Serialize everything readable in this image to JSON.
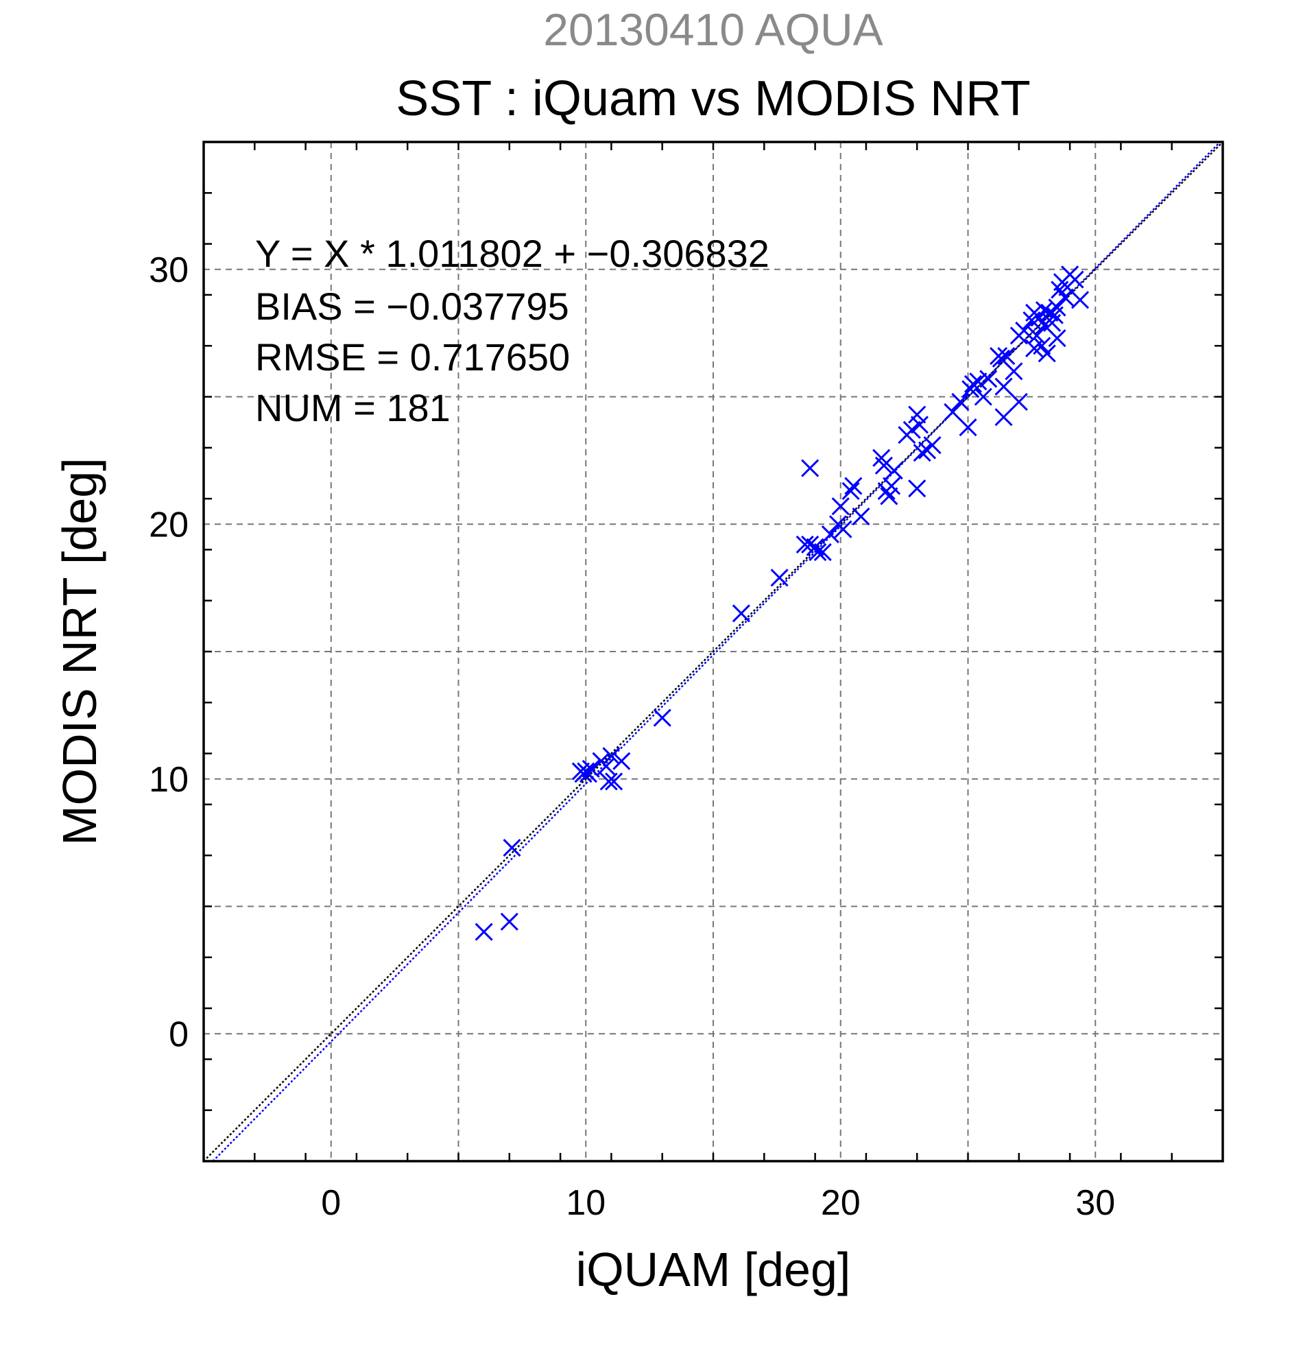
{
  "chart_data": {
    "type": "scatter",
    "suptitle": "20130410 AQUA",
    "title": "SST : iQuam vs MODIS NRT",
    "xlabel": "iQUAM [deg]",
    "ylabel": "MODIS NRT [deg]",
    "xlim": [
      -5,
      35
    ],
    "ylim": [
      -5,
      35
    ],
    "xticks": [
      0,
      10,
      20,
      30
    ],
    "yticks": [
      0,
      10,
      20,
      30
    ],
    "xtick_labels": [
      "0",
      "10",
      "20",
      "30"
    ],
    "ytick_labels": [
      "0",
      "10",
      "20",
      "30"
    ],
    "grid": true,
    "annotations": [
      "Y = X * 1.011802 + −0.306832",
      "BIAS = −0.037795",
      "RMSE = 0.717650",
      "NUM = 181"
    ],
    "regression": {
      "slope": 1.011802,
      "intercept": -0.306832,
      "color": "#0000ff"
    },
    "identity_line": {
      "slope": 1,
      "intercept": 0,
      "color": "#000000"
    },
    "series": [
      {
        "marker": "x",
        "color": "#0000ff",
        "points": [
          [
            6.0,
            4.0
          ],
          [
            7.0,
            4.4
          ],
          [
            7.1,
            7.3
          ],
          [
            9.8,
            10.3
          ],
          [
            9.9,
            10.2
          ],
          [
            10.0,
            10.3
          ],
          [
            10.1,
            10.2
          ],
          [
            10.2,
            10.4
          ],
          [
            10.6,
            10.7
          ],
          [
            10.8,
            10.5
          ],
          [
            11.0,
            10.9
          ],
          [
            10.9,
            9.9
          ],
          [
            11.1,
            9.9
          ],
          [
            11.4,
            10.7
          ],
          [
            13.0,
            12.4
          ],
          [
            16.1,
            16.5
          ],
          [
            17.6,
            17.9
          ],
          [
            18.6,
            19.2
          ],
          [
            18.8,
            19.2
          ],
          [
            19.0,
            19.1
          ],
          [
            19.1,
            18.9
          ],
          [
            19.3,
            18.9
          ],
          [
            18.8,
            22.2
          ],
          [
            19.6,
            19.6
          ],
          [
            19.9,
            20.0
          ],
          [
            20.0,
            20.7
          ],
          [
            20.1,
            19.8
          ],
          [
            20.4,
            21.3
          ],
          [
            20.5,
            21.5
          ],
          [
            20.8,
            20.3
          ],
          [
            21.6,
            22.6
          ],
          [
            21.7,
            22.3
          ],
          [
            21.8,
            21.3
          ],
          [
            21.9,
            21.1
          ],
          [
            22.0,
            21.5
          ],
          [
            22.1,
            22.1
          ],
          [
            22.6,
            23.5
          ],
          [
            22.8,
            23.7
          ],
          [
            23.0,
            24.3
          ],
          [
            23.0,
            21.4
          ],
          [
            23.1,
            23.9
          ],
          [
            23.2,
            22.8
          ],
          [
            23.4,
            22.9
          ],
          [
            23.6,
            23.1
          ],
          [
            24.4,
            24.4
          ],
          [
            24.7,
            24.8
          ],
          [
            25.0,
            23.8
          ],
          [
            25.1,
            25.3
          ],
          [
            25.2,
            25.5
          ],
          [
            25.4,
            25.6
          ],
          [
            25.6,
            25.0
          ],
          [
            25.8,
            25.7
          ],
          [
            26.2,
            26.6
          ],
          [
            26.3,
            26.5
          ],
          [
            26.4,
            25.4
          ],
          [
            26.4,
            24.2
          ],
          [
            26.5,
            26.6
          ],
          [
            26.8,
            26.0
          ],
          [
            27.0,
            24.8
          ],
          [
            27.0,
            27.4
          ],
          [
            27.2,
            27.6
          ],
          [
            27.5,
            28.0
          ],
          [
            27.6,
            28.3
          ],
          [
            27.6,
            26.9
          ],
          [
            27.7,
            27.4
          ],
          [
            27.8,
            28.1
          ],
          [
            27.9,
            27.0
          ],
          [
            28.0,
            28.4
          ],
          [
            28.0,
            27.8
          ],
          [
            28.1,
            26.7
          ],
          [
            28.2,
            28.3
          ],
          [
            28.3,
            27.9
          ],
          [
            28.4,
            28.2
          ],
          [
            28.5,
            28.5
          ],
          [
            28.5,
            27.3
          ],
          [
            28.6,
            29.2
          ],
          [
            28.7,
            29.5
          ],
          [
            28.8,
            28.9
          ],
          [
            28.9,
            29.3
          ],
          [
            29.0,
            29.8
          ],
          [
            29.2,
            29.6
          ],
          [
            29.4,
            28.8
          ]
        ]
      }
    ]
  }
}
